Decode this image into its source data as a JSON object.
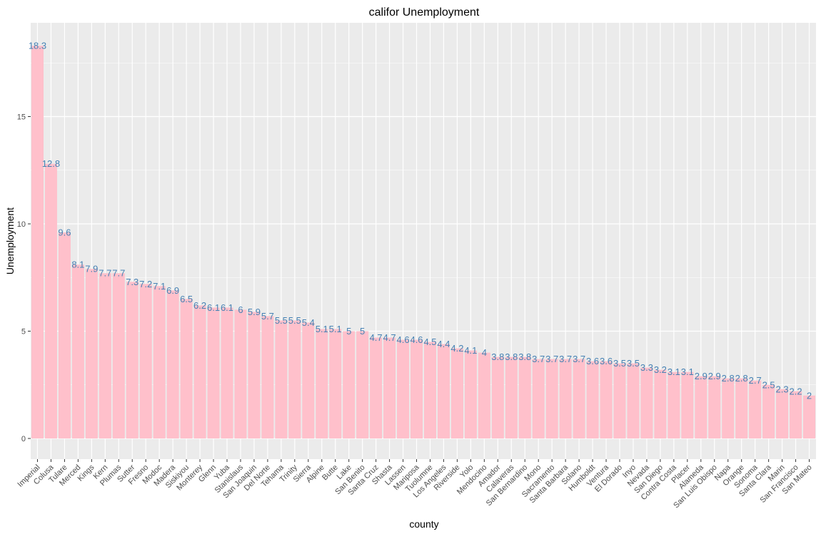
{
  "chart_data": {
    "type": "bar",
    "title": "califor Unemployment",
    "xlabel": "county",
    "ylabel": "Unemployment",
    "ylim": [
      0,
      19.2
    ],
    "yticks": [
      0,
      5,
      10,
      15
    ],
    "grid": true,
    "legend": "none",
    "colors": {
      "bar": "#ffc0cb",
      "label": "#4682b4",
      "panel": "#ebebeb",
      "grid": "#ffffff"
    },
    "categories": [
      "Imperial",
      "Colusa",
      "Tulare",
      "Merced",
      "Kings",
      "Kern",
      "Plumas",
      "Sutter",
      "Fresno",
      "Modoc",
      "Madera",
      "Siskiyou",
      "Monterey",
      "Glenn",
      "Yuba",
      "Stanislaus",
      "San Joaquin",
      "Del Norte",
      "Tehama",
      "Trinity",
      "Sierra",
      "Alpine",
      "Butte",
      "Lake",
      "San Benito",
      "Santa Cruz",
      "Shasta",
      "Lassen",
      "Mariposa",
      "Tuolumne",
      "Los Angeles",
      "Riverside",
      "Yolo",
      "Mendocino",
      "Amador",
      "Calaveras",
      "San Bernardino",
      "Mono",
      "Sacramento",
      "Santa Barbara",
      "Solano",
      "Humboldt",
      "Ventura",
      "El Dorado",
      "Inyo",
      "Nevada",
      "San Diego",
      "Contra Costa",
      "Placer",
      "Alameda",
      "San Luis Obispo",
      "Napa",
      "Orange",
      "Sonoma",
      "Santa Clara",
      "Marin",
      "San Francisco",
      "San Mateo"
    ],
    "values": [
      18.3,
      12.8,
      9.6,
      8.1,
      7.9,
      7.7,
      7.7,
      7.3,
      7.2,
      7.1,
      6.9,
      6.5,
      6.2,
      6.1,
      6.1,
      6,
      5.9,
      5.7,
      5.5,
      5.5,
      5.4,
      5.1,
      5.1,
      5,
      5,
      4.7,
      4.7,
      4.6,
      4.6,
      4.5,
      4.4,
      4.2,
      4.1,
      4,
      3.8,
      3.8,
      3.8,
      3.7,
      3.7,
      3.7,
      3.7,
      3.6,
      3.6,
      3.5,
      3.5,
      3.3,
      3.2,
      3.1,
      3.1,
      2.9,
      2.9,
      2.8,
      2.8,
      2.7,
      2.5,
      2.3,
      2.2,
      2
    ]
  }
}
